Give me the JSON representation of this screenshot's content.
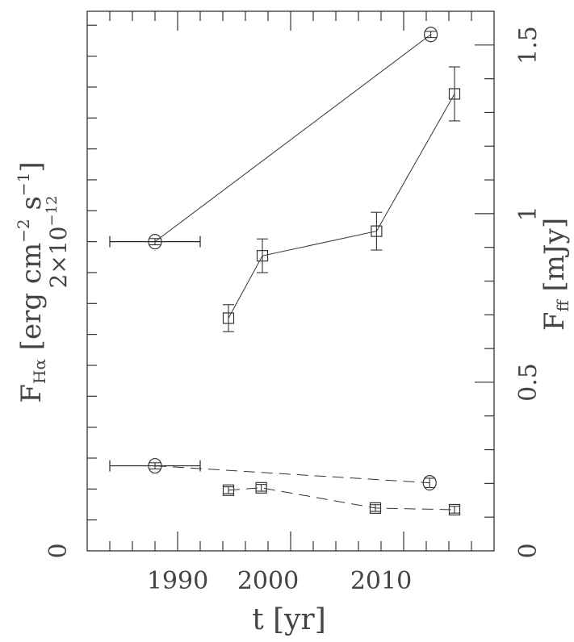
{
  "chart_data": {
    "type": "scatter",
    "xlabel": "t [yr]",
    "xlim": [
      1982,
      2018
    ],
    "xticks": [
      1990,
      2000,
      2010
    ],
    "xtick_labels": [
      "1990",
      "2000",
      "2010"
    ],
    "ylabel_left": {
      "main": "F",
      "sub": "Hα",
      "unit": "[erg cm",
      "exp1": "−2",
      "mid": " s",
      "exp2": "−1",
      "end": "]"
    },
    "ylim_left": [
      0,
      3.49e-12
    ],
    "yticks_left": [
      0,
      2e-12
    ],
    "ytick_labels_left": {
      "zero": "0",
      "mant": "2×10",
      "exp": "−12"
    },
    "ylabel_right": {
      "main": "F",
      "sub": "ff",
      "unit": " [mJy]"
    },
    "ylim_right": [
      0,
      1.6
    ],
    "yticks_right": [
      0,
      0.5,
      1,
      1.5
    ],
    "ytick_labels_right": [
      "0",
      "0.5",
      "1",
      "1.5"
    ],
    "grid": false,
    "series": [
      {
        "name": "upper circles",
        "axis": "left",
        "marker": "circle",
        "line": "solid",
        "x": [
          1988,
          2012.4
        ],
        "y": [
          2e-12,
          3.34e-12
        ],
        "xerr": [
          4,
          0
        ],
        "yerr": [
          2e-14,
          2e-14
        ]
      },
      {
        "name": "upper squares",
        "axis": "right",
        "marker": "square",
        "line": "solid",
        "x": [
          1994.5,
          1997.5,
          2007.6,
          2014.5
        ],
        "y": [
          0.69,
          0.875,
          0.948,
          1.355
        ],
        "xerr": [
          0,
          0,
          0,
          0
        ],
        "yerr": [
          0.04,
          0.05,
          0.056,
          0.08
        ]
      },
      {
        "name": "lower circles",
        "axis": "left",
        "marker": "circle",
        "line": "dashed",
        "x": [
          1988,
          2012.3
        ],
        "y": [
          5.5e-13,
          4.4e-13
        ],
        "xerr": [
          4,
          0
        ],
        "yerr": [
          2e-14,
          3e-14
        ]
      },
      {
        "name": "lower squares",
        "axis": "right",
        "marker": "square",
        "line": "dashed",
        "x": [
          1994.5,
          1997.4,
          2007.5,
          2014.5
        ],
        "y": [
          0.18,
          0.187,
          0.127,
          0.122
        ],
        "xerr": [
          0,
          0,
          0,
          0
        ],
        "yerr": [
          0.01,
          0.01,
          0.01,
          0.01
        ]
      }
    ]
  }
}
